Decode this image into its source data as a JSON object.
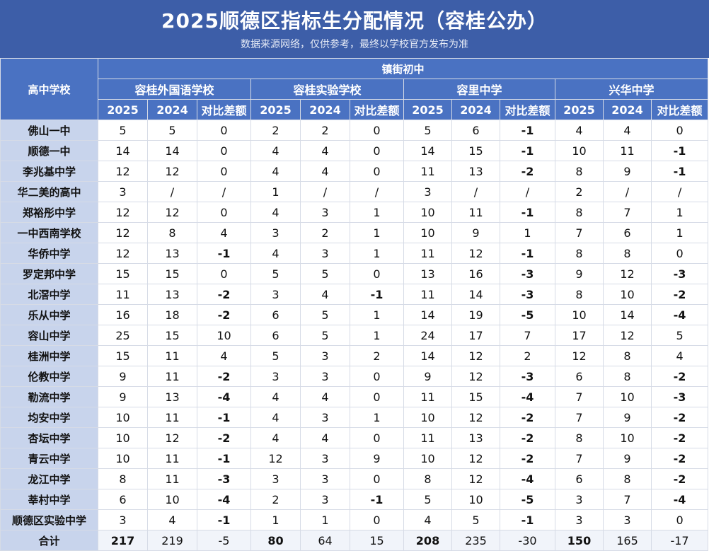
{
  "title": "2025顺德区指标生分配情况（容桂公办）",
  "subtitle": "数据来源网络，仅供参考，最终以学校官方发布为准",
  "header": {
    "row_label": "高中学校",
    "group_label": "镇街初中",
    "schools": [
      "容桂外国语学校",
      "容桂实验学校",
      "容里中学",
      "兴华中学"
    ],
    "subcols": [
      "2025",
      "2024",
      "对比差额"
    ]
  },
  "rows": [
    {
      "name": "佛山一中",
      "vals": [
        "5",
        "5",
        "0",
        "2",
        "2",
        "0",
        "5",
        "6",
        "-1",
        "4",
        "4",
        "0"
      ]
    },
    {
      "name": "顺德一中",
      "vals": [
        "14",
        "14",
        "0",
        "4",
        "4",
        "0",
        "14",
        "15",
        "-1",
        "10",
        "11",
        "-1"
      ]
    },
    {
      "name": "李兆基中学",
      "vals": [
        "12",
        "12",
        "0",
        "4",
        "4",
        "0",
        "11",
        "13",
        "-2",
        "8",
        "9",
        "-1"
      ]
    },
    {
      "name": "华二美的高中",
      "vals": [
        "3",
        "/",
        "/",
        "1",
        "/",
        "/",
        "3",
        "/",
        "/",
        "2",
        "/",
        "/"
      ]
    },
    {
      "name": "郑裕彤中学",
      "vals": [
        "12",
        "12",
        "0",
        "4",
        "3",
        "1",
        "10",
        "11",
        "-1",
        "8",
        "7",
        "1"
      ]
    },
    {
      "name": "一中西南学校",
      "vals": [
        "12",
        "8",
        "4",
        "3",
        "2",
        "1",
        "10",
        "9",
        "1",
        "7",
        "6",
        "1"
      ]
    },
    {
      "name": "华侨中学",
      "vals": [
        "12",
        "13",
        "-1",
        "4",
        "3",
        "1",
        "11",
        "12",
        "-1",
        "8",
        "8",
        "0"
      ]
    },
    {
      "name": "罗定邦中学",
      "vals": [
        "15",
        "15",
        "0",
        "5",
        "5",
        "0",
        "13",
        "16",
        "-3",
        "9",
        "12",
        "-3"
      ]
    },
    {
      "name": "北滘中学",
      "vals": [
        "11",
        "13",
        "-2",
        "3",
        "4",
        "-1",
        "11",
        "14",
        "-3",
        "8",
        "10",
        "-2"
      ]
    },
    {
      "name": "乐从中学",
      "vals": [
        "16",
        "18",
        "-2",
        "6",
        "5",
        "1",
        "14",
        "19",
        "-5",
        "10",
        "14",
        "-4"
      ]
    },
    {
      "name": "容山中学",
      "vals": [
        "25",
        "15",
        "10",
        "6",
        "5",
        "1",
        "24",
        "17",
        "7",
        "17",
        "12",
        "5"
      ]
    },
    {
      "name": "桂洲中学",
      "vals": [
        "15",
        "11",
        "4",
        "5",
        "3",
        "2",
        "14",
        "12",
        "2",
        "12",
        "8",
        "4"
      ]
    },
    {
      "name": "伦教中学",
      "vals": [
        "9",
        "11",
        "-2",
        "3",
        "3",
        "0",
        "9",
        "12",
        "-3",
        "6",
        "8",
        "-2"
      ]
    },
    {
      "name": "勒流中学",
      "vals": [
        "9",
        "13",
        "-4",
        "4",
        "4",
        "0",
        "11",
        "15",
        "-4",
        "7",
        "10",
        "-3"
      ]
    },
    {
      "name": "均安中学",
      "vals": [
        "10",
        "11",
        "-1",
        "4",
        "3",
        "1",
        "10",
        "12",
        "-2",
        "7",
        "9",
        "-2"
      ]
    },
    {
      "name": "杏坛中学",
      "vals": [
        "10",
        "12",
        "-2",
        "4",
        "4",
        "0",
        "11",
        "13",
        "-2",
        "8",
        "10",
        "-2"
      ]
    },
    {
      "name": "青云中学",
      "vals": [
        "10",
        "11",
        "-1",
        "12",
        "3",
        "9",
        "10",
        "12",
        "-2",
        "7",
        "9",
        "-2"
      ]
    },
    {
      "name": "龙江中学",
      "vals": [
        "8",
        "11",
        "-3",
        "3",
        "3",
        "0",
        "8",
        "12",
        "-4",
        "6",
        "8",
        "-2"
      ]
    },
    {
      "name": "莘村中学",
      "vals": [
        "6",
        "10",
        "-4",
        "2",
        "3",
        "-1",
        "5",
        "10",
        "-5",
        "3",
        "7",
        "-4"
      ]
    },
    {
      "name": "顺德区实验中学",
      "vals": [
        "3",
        "4",
        "-1",
        "1",
        "1",
        "0",
        "4",
        "5",
        "-1",
        "3",
        "3",
        "0"
      ]
    }
  ],
  "total": {
    "name": "合计",
    "vals": [
      "217",
      "219",
      "-5",
      "80",
      "64",
      "15",
      "208",
      "235",
      "-30",
      "150",
      "165",
      "-17"
    ]
  },
  "colors": {
    "title_bg": "#3d5ea8",
    "header_bg": "#4a72c2",
    "row_label_bg": "#c8d4ec",
    "border": "#d6dbe6"
  }
}
